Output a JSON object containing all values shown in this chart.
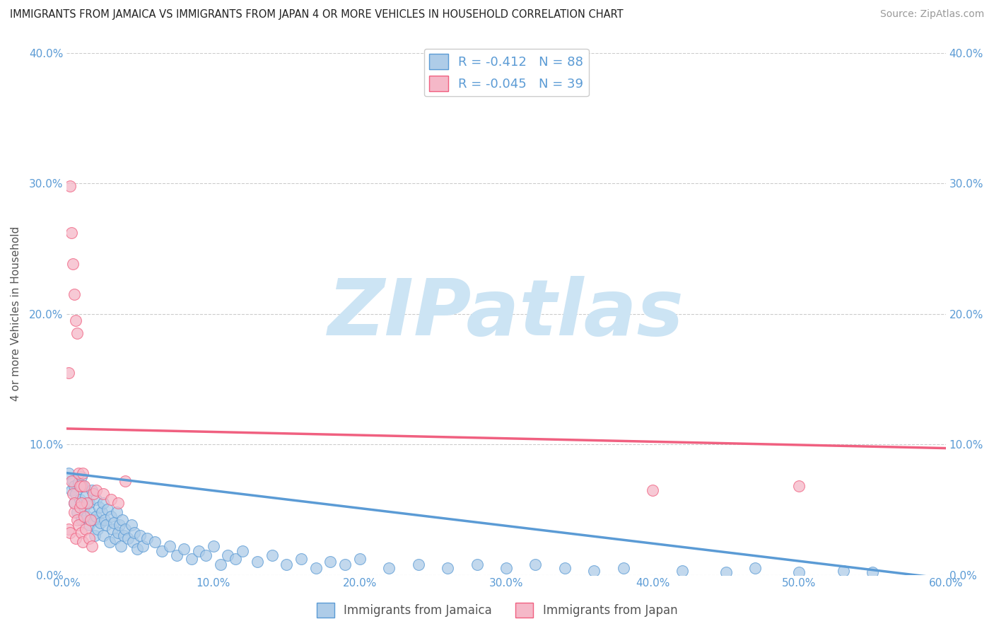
{
  "title": "IMMIGRANTS FROM JAMAICA VS IMMIGRANTS FROM JAPAN 4 OR MORE VEHICLES IN HOUSEHOLD CORRELATION CHART",
  "source": "Source: ZipAtlas.com",
  "ylabel": "4 or more Vehicles in Household",
  "x_min": 0.0,
  "x_max": 0.6,
  "y_min": 0.0,
  "y_max": 0.4,
  "x_ticks": [
    0.0,
    0.1,
    0.2,
    0.3,
    0.4,
    0.5,
    0.6
  ],
  "x_tick_labels": [
    "0.0%",
    "10.0%",
    "20.0%",
    "30.0%",
    "40.0%",
    "50.0%",
    "60.0%"
  ],
  "y_ticks": [
    0.0,
    0.1,
    0.2,
    0.3,
    0.4
  ],
  "y_tick_labels": [
    "0.0%",
    "10.0%",
    "20.0%",
    "30.0%",
    "40.0%"
  ],
  "jamaica_color": "#aecce8",
  "japan_color": "#f5b8c8",
  "jamaica_line_color": "#5b9bd5",
  "japan_line_color": "#f06080",
  "jamaica_R": -0.412,
  "jamaica_N": 88,
  "japan_R": -0.045,
  "japan_N": 39,
  "legend_jamaica": "Immigrants from Jamaica",
  "legend_japan": "Immigrants from Japan",
  "watermark": "ZIPatlas",
  "watermark_color": "#cce4f4",
  "grid_color": "#cccccc",
  "axis_label_color": "#555555",
  "tick_color": "#5b9bd5",
  "jamaica_line_intercept": 0.078,
  "jamaica_line_slope": -0.135,
  "japan_line_intercept": 0.112,
  "japan_line_slope": -0.025,
  "jamaica_points": [
    [
      0.001,
      0.078
    ],
    [
      0.003,
      0.065
    ],
    [
      0.004,
      0.072
    ],
    [
      0.005,
      0.068
    ],
    [
      0.005,
      0.055
    ],
    [
      0.006,
      0.062
    ],
    [
      0.007,
      0.048
    ],
    [
      0.008,
      0.071
    ],
    [
      0.009,
      0.058
    ],
    [
      0.01,
      0.075
    ],
    [
      0.01,
      0.042
    ],
    [
      0.011,
      0.068
    ],
    [
      0.012,
      0.052
    ],
    [
      0.013,
      0.06
    ],
    [
      0.014,
      0.045
    ],
    [
      0.015,
      0.055
    ],
    [
      0.015,
      0.038
    ],
    [
      0.016,
      0.048
    ],
    [
      0.017,
      0.065
    ],
    [
      0.018,
      0.042
    ],
    [
      0.019,
      0.03
    ],
    [
      0.02,
      0.058
    ],
    [
      0.02,
      0.045
    ],
    [
      0.021,
      0.035
    ],
    [
      0.022,
      0.052
    ],
    [
      0.023,
      0.04
    ],
    [
      0.024,
      0.048
    ],
    [
      0.025,
      0.055
    ],
    [
      0.025,
      0.03
    ],
    [
      0.026,
      0.042
    ],
    [
      0.027,
      0.038
    ],
    [
      0.028,
      0.05
    ],
    [
      0.029,
      0.025
    ],
    [
      0.03,
      0.045
    ],
    [
      0.031,
      0.035
    ],
    [
      0.032,
      0.04
    ],
    [
      0.033,
      0.028
    ],
    [
      0.034,
      0.048
    ],
    [
      0.035,
      0.032
    ],
    [
      0.036,
      0.038
    ],
    [
      0.037,
      0.022
    ],
    [
      0.038,
      0.042
    ],
    [
      0.039,
      0.03
    ],
    [
      0.04,
      0.035
    ],
    [
      0.042,
      0.028
    ],
    [
      0.044,
      0.038
    ],
    [
      0.045,
      0.025
    ],
    [
      0.046,
      0.032
    ],
    [
      0.048,
      0.02
    ],
    [
      0.05,
      0.03
    ],
    [
      0.052,
      0.022
    ],
    [
      0.055,
      0.028
    ],
    [
      0.06,
      0.025
    ],
    [
      0.065,
      0.018
    ],
    [
      0.07,
      0.022
    ],
    [
      0.075,
      0.015
    ],
    [
      0.08,
      0.02
    ],
    [
      0.085,
      0.012
    ],
    [
      0.09,
      0.018
    ],
    [
      0.095,
      0.015
    ],
    [
      0.1,
      0.022
    ],
    [
      0.105,
      0.008
    ],
    [
      0.11,
      0.015
    ],
    [
      0.115,
      0.012
    ],
    [
      0.12,
      0.018
    ],
    [
      0.13,
      0.01
    ],
    [
      0.14,
      0.015
    ],
    [
      0.15,
      0.008
    ],
    [
      0.16,
      0.012
    ],
    [
      0.17,
      0.005
    ],
    [
      0.18,
      0.01
    ],
    [
      0.19,
      0.008
    ],
    [
      0.2,
      0.012
    ],
    [
      0.22,
      0.005
    ],
    [
      0.24,
      0.008
    ],
    [
      0.26,
      0.005
    ],
    [
      0.28,
      0.008
    ],
    [
      0.3,
      0.005
    ],
    [
      0.32,
      0.008
    ],
    [
      0.34,
      0.005
    ],
    [
      0.36,
      0.003
    ],
    [
      0.38,
      0.005
    ],
    [
      0.42,
      0.003
    ],
    [
      0.45,
      0.002
    ],
    [
      0.47,
      0.005
    ],
    [
      0.5,
      0.002
    ],
    [
      0.53,
      0.003
    ],
    [
      0.55,
      0.002
    ]
  ],
  "japan_points": [
    [
      0.001,
      0.035
    ],
    [
      0.002,
      0.032
    ],
    [
      0.003,
      0.072
    ],
    [
      0.004,
      0.062
    ],
    [
      0.005,
      0.048
    ],
    [
      0.005,
      0.055
    ],
    [
      0.006,
      0.028
    ],
    [
      0.007,
      0.042
    ],
    [
      0.008,
      0.038
    ],
    [
      0.009,
      0.052
    ],
    [
      0.01,
      0.032
    ],
    [
      0.01,
      0.068
    ],
    [
      0.011,
      0.025
    ],
    [
      0.012,
      0.045
    ],
    [
      0.013,
      0.035
    ],
    [
      0.014,
      0.055
    ],
    [
      0.015,
      0.028
    ],
    [
      0.016,
      0.042
    ],
    [
      0.017,
      0.022
    ],
    [
      0.018,
      0.062
    ],
    [
      0.001,
      0.155
    ],
    [
      0.002,
      0.298
    ],
    [
      0.003,
      0.262
    ],
    [
      0.004,
      0.238
    ],
    [
      0.005,
      0.215
    ],
    [
      0.006,
      0.195
    ],
    [
      0.007,
      0.185
    ],
    [
      0.008,
      0.078
    ],
    [
      0.009,
      0.068
    ],
    [
      0.01,
      0.055
    ],
    [
      0.011,
      0.078
    ],
    [
      0.012,
      0.068
    ],
    [
      0.02,
      0.065
    ],
    [
      0.025,
      0.062
    ],
    [
      0.03,
      0.058
    ],
    [
      0.035,
      0.055
    ],
    [
      0.04,
      0.072
    ],
    [
      0.4,
      0.065
    ],
    [
      0.5,
      0.068
    ]
  ]
}
